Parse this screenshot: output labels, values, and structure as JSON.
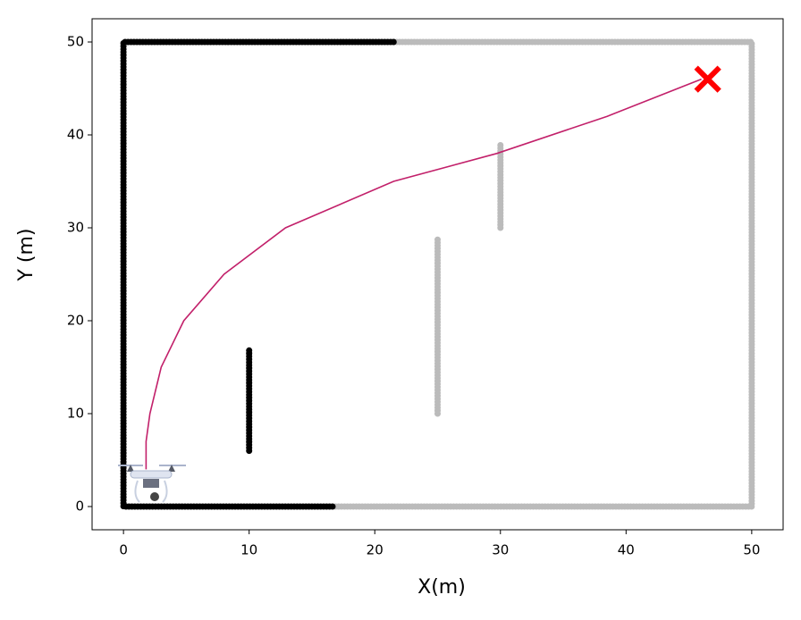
{
  "chart_data": {
    "type": "line",
    "x_label": "X(m)",
    "y_label": "Y (m)",
    "xlim": [
      -2.5,
      52.5
    ],
    "ylim": [
      -2.5,
      52.5
    ],
    "xticks": [
      0,
      10,
      20,
      30,
      40,
      50
    ],
    "yticks": [
      0,
      10,
      20,
      30,
      40,
      50
    ],
    "series": [
      {
        "color": "#bbbbbb",
        "width": 7,
        "dash": "dotted",
        "x": [
          21.5,
          50,
          50,
          16.7,
          null,
          25,
          25,
          null,
          30,
          30
        ],
        "y": [
          50,
          50,
          0,
          0,
          null,
          10,
          29,
          null,
          30,
          39
        ]
      },
      {
        "color": "#000000",
        "width": 7,
        "dash": "dotted",
        "x": [
          21.5,
          0,
          0,
          16.7,
          null,
          10,
          10
        ],
        "y": [
          50,
          50,
          0,
          0,
          null,
          6,
          17
        ]
      },
      {
        "color": "#c2206a",
        "width": 1.6,
        "dash": "solid",
        "x": [
          1.8,
          1.8,
          2.1,
          3.0,
          4.8,
          8.0,
          12.9,
          21.5,
          29.7,
          38.5,
          46.0
        ],
        "y": [
          4,
          7,
          10,
          15,
          20,
          25,
          30,
          35,
          38,
          42,
          46
        ]
      },
      {
        "color": "#ff0000",
        "marker": "x",
        "x": [
          46.5
        ],
        "y": [
          46
        ]
      }
    ]
  }
}
